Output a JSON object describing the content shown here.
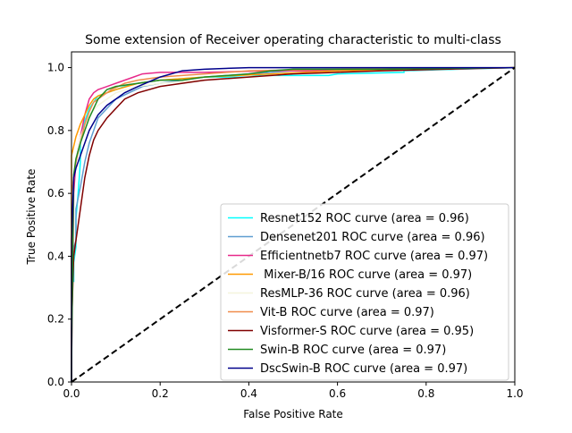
{
  "chart_data": {
    "type": "line",
    "title": "Some extension of Receiver operating characteristic to multi-class",
    "xlabel": "False Positive Rate",
    "ylabel": "True Positive Rate",
    "xlim": [
      0.0,
      1.0
    ],
    "ylim": [
      0.0,
      1.05
    ],
    "xticks": [
      "0.0",
      "0.2",
      "0.4",
      "0.6",
      "0.8",
      "1.0"
    ],
    "yticks": [
      "0.0",
      "0.2",
      "0.4",
      "0.6",
      "0.8",
      "1.0"
    ],
    "grid": false,
    "legend_position": "lower-right",
    "diagonal": {
      "style": "dashed",
      "color": "#000000",
      "x": [
        0,
        1
      ],
      "y": [
        0,
        1
      ]
    },
    "series": [
      {
        "name": "Resnet152 ROC curve (area = 0.96)",
        "color": "#00ffff",
        "x": [
          0,
          0,
          0.005,
          0.005,
          0.01,
          0.01,
          0.015,
          0.02,
          0.02,
          0.03,
          0.04,
          0.05,
          0.06,
          0.08,
          0.1,
          0.12,
          0.15,
          0.2,
          0.3,
          0.4,
          0.42,
          0.45,
          0.5,
          0.58,
          0.6,
          0.75,
          0.75,
          1.0
        ],
        "y": [
          0,
          0.32,
          0.32,
          0.38,
          0.43,
          0.52,
          0.6,
          0.7,
          0.78,
          0.83,
          0.87,
          0.89,
          0.91,
          0.92,
          0.93,
          0.94,
          0.95,
          0.96,
          0.97,
          0.97,
          0.975,
          0.975,
          0.975,
          0.975,
          0.98,
          0.985,
          0.99,
          1.0
        ]
      },
      {
        "name": "Densenet201 ROC curve (area = 0.96)",
        "color": "#5f9ed1",
        "x": [
          0,
          0,
          0.01,
          0.01,
          0.02,
          0.03,
          0.04,
          0.05,
          0.06,
          0.08,
          0.1,
          0.13,
          0.16,
          0.2,
          0.25,
          0.3,
          0.4,
          0.5,
          0.7,
          1.0
        ],
        "y": [
          0,
          0.4,
          0.45,
          0.55,
          0.62,
          0.7,
          0.76,
          0.8,
          0.84,
          0.87,
          0.9,
          0.92,
          0.94,
          0.95,
          0.96,
          0.97,
          0.98,
          0.99,
          0.995,
          1.0
        ]
      },
      {
        "name": "Efficientnetb7 ROC curve (area = 0.97)",
        "color": "#e7298a",
        "x": [
          0,
          0,
          0.005,
          0.01,
          0.02,
          0.03,
          0.04,
          0.05,
          0.06,
          0.08,
          0.1,
          0.12,
          0.14,
          0.16,
          0.2,
          0.3,
          0.45,
          0.6,
          1.0
        ],
        "y": [
          0,
          0.04,
          0.6,
          0.7,
          0.78,
          0.85,
          0.9,
          0.92,
          0.93,
          0.94,
          0.95,
          0.96,
          0.97,
          0.98,
          0.985,
          0.985,
          0.99,
          0.99,
          1.0
        ]
      },
      {
        "name": " Mixer-B/16 ROC curve (area = 0.97)",
        "color": "#ff9900",
        "x": [
          0,
          0,
          0.005,
          0.01,
          0.02,
          0.03,
          0.04,
          0.05,
          0.06,
          0.08,
          0.1,
          0.15,
          0.2,
          0.3,
          0.45,
          0.6,
          1.0
        ],
        "y": [
          0,
          0.72,
          0.75,
          0.78,
          0.82,
          0.85,
          0.88,
          0.9,
          0.91,
          0.92,
          0.93,
          0.95,
          0.96,
          0.97,
          0.98,
          0.99,
          1.0
        ]
      },
      {
        "name": "ResMLP-36 ROC curve (area = 0.96)",
        "color": "#f5f5dc",
        "x": [
          0,
          0,
          0.01,
          0.02,
          0.04,
          0.06,
          0.08,
          0.1,
          0.15,
          0.2,
          0.3,
          0.5,
          0.7,
          1.0
        ],
        "y": [
          0,
          0.6,
          0.7,
          0.78,
          0.85,
          0.88,
          0.9,
          0.92,
          0.94,
          0.95,
          0.96,
          0.98,
          0.99,
          1.0
        ]
      },
      {
        "name": "Vit-B ROC curve (area = 0.97)",
        "color": "#f08c4b",
        "x": [
          0,
          0,
          0.005,
          0.01,
          0.02,
          0.03,
          0.04,
          0.05,
          0.07,
          0.09,
          0.12,
          0.15,
          0.2,
          0.3,
          0.4,
          0.6,
          1.0
        ],
        "y": [
          0,
          0.6,
          0.65,
          0.7,
          0.76,
          0.82,
          0.86,
          0.89,
          0.91,
          0.93,
          0.95,
          0.96,
          0.97,
          0.98,
          0.99,
          0.995,
          1.0
        ]
      },
      {
        "name": "Visformer-S ROC curve (area = 0.95)",
        "color": "#800000",
        "x": [
          0,
          0,
          0.005,
          0.01,
          0.02,
          0.03,
          0.04,
          0.05,
          0.06,
          0.08,
          0.1,
          0.12,
          0.15,
          0.2,
          0.3,
          0.4,
          0.5,
          0.7,
          1.0
        ],
        "y": [
          0,
          0.17,
          0.4,
          0.45,
          0.55,
          0.65,
          0.72,
          0.77,
          0.8,
          0.84,
          0.87,
          0.9,
          0.92,
          0.94,
          0.96,
          0.97,
          0.98,
          0.99,
          1.0
        ]
      },
      {
        "name": "Swin-B ROC curve (area = 0.97)",
        "color": "#228b22",
        "x": [
          0,
          0,
          0.005,
          0.01,
          0.02,
          0.03,
          0.04,
          0.06,
          0.08,
          0.1,
          0.15,
          0.2,
          0.25,
          0.3,
          0.4,
          0.45,
          0.5,
          0.7,
          1.0
        ],
        "y": [
          0,
          0.05,
          0.66,
          0.71,
          0.76,
          0.8,
          0.84,
          0.9,
          0.93,
          0.94,
          0.95,
          0.96,
          0.96,
          0.97,
          0.98,
          0.99,
          0.995,
          0.995,
          1.0
        ]
      },
      {
        "name": "DscSwin-B ROC curve (area = 0.97)",
        "color": "#00008b",
        "x": [
          0,
          0,
          0.005,
          0.01,
          0.02,
          0.03,
          0.04,
          0.06,
          0.08,
          0.1,
          0.12,
          0.15,
          0.2,
          0.25,
          0.3,
          0.4,
          0.6,
          0.8,
          1.0
        ],
        "y": [
          0,
          0.45,
          0.65,
          0.68,
          0.72,
          0.76,
          0.8,
          0.85,
          0.88,
          0.9,
          0.92,
          0.94,
          0.97,
          0.99,
          0.995,
          1.0,
          1.0,
          1.0,
          1.0
        ]
      }
    ]
  }
}
